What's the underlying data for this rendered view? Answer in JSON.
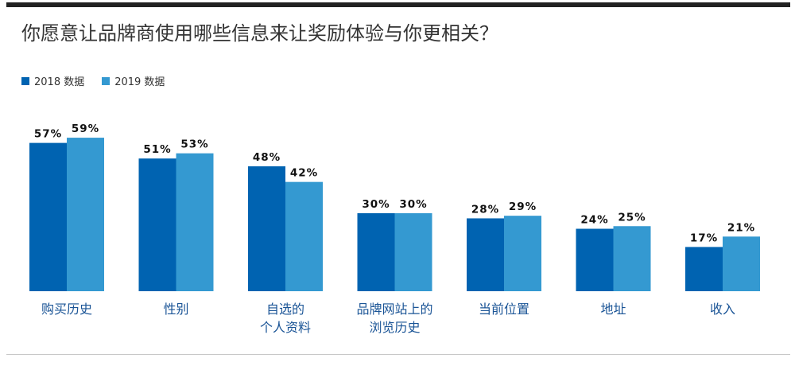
{
  "chart_data": {
    "type": "bar",
    "title": "你愿意让品牌商使用哪些信息来让奖励体验与你更相关？",
    "categories": [
      [
        "购买历史"
      ],
      [
        "性别"
      ],
      [
        "自选的",
        "个人资料"
      ],
      [
        "品牌网站上的",
        "浏览历史"
      ],
      [
        "当前位置"
      ],
      [
        "地址"
      ],
      [
        "收入"
      ]
    ],
    "series": [
      {
        "name": "2018 数据",
        "color": "#0063b1",
        "values": [
          57,
          51,
          48,
          30,
          28,
          24,
          17
        ]
      },
      {
        "name": "2019 数据",
        "color": "#3499d1",
        "values": [
          59,
          53,
          42,
          30,
          29,
          25,
          21
        ]
      }
    ],
    "value_suffix": "%",
    "ylim": [
      0,
      60
    ],
    "legend_position": "top-left",
    "grid": false
  }
}
